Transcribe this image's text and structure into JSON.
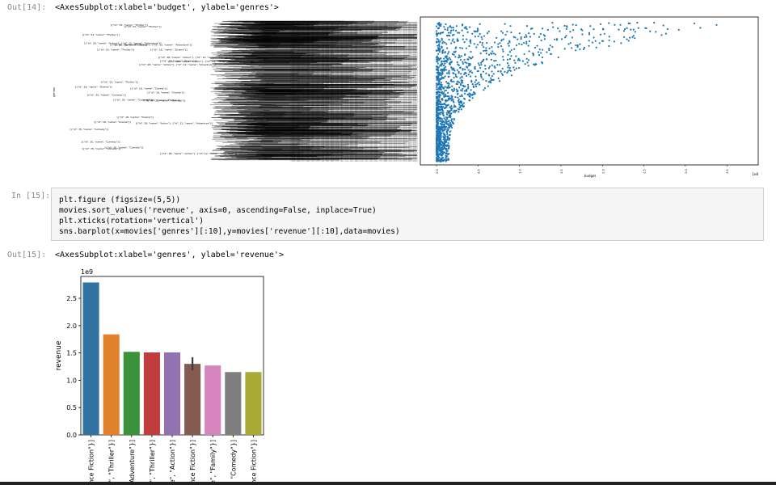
{
  "cells": {
    "out14": {
      "prompt": "Out[14]:",
      "text": "<AxesSubplot:xlabel='budget', ylabel='genres'>"
    },
    "in15": {
      "prompt": "In [15]:",
      "lines": [
        "plt.figure (figsize=(5,5))",
        "movies.sort_values('revenue', axis=0, ascending=False, inplace=True)",
        "plt.xticks(rotation='vertical')",
        "sns.barplot(x=movies['genres'][:10],y=movies['revenue'][:10],data=movies)"
      ]
    },
    "out15": {
      "prompt": "Out[15]:",
      "text": "<AxesSubplot:xlabel='genres', ylabel='revenue'>"
    }
  },
  "chart_data": [
    {
      "type": "scatter",
      "xlabel": "budget",
      "ylabel": "genres",
      "x_exponent": "1e8",
      "xlim": [
        0,
        3.8
      ],
      "xticks": [
        "0.0",
        "0.5",
        "1.0",
        "1.5",
        "2.0",
        "2.5",
        "3.0",
        "3.5"
      ],
      "tick_labels_dense": [
        "[{\"id\": 18, \"name\": \"Drama\"}]",
        "[{\"id\": 28, \"name\": \"Action\"}, {\"id\": 12, \"name\": \"Adventure\"}]",
        "[{\"id\": 35, \"name\": \"Comedy\"}]",
        "[{\"id\": 53, \"name\": \"Thriller\"}]"
      ],
      "point_color": "#1f77b4"
    },
    {
      "type": "bar",
      "title": "",
      "xlabel": "",
      "ylabel": "revenue",
      "y_exponent": "1e9",
      "ylim": [
        0,
        2.9
      ],
      "yticks": [
        "0.0",
        "0.5",
        "1.0",
        "1.5",
        "2.0",
        "2.5"
      ],
      "categories": [
        "ence Fiction\"}]",
        "e\", \"Thriller\"}]",
        "\"Adventure\"}]",
        "e\", \"Thriller\"}]",
        "ne\", \"Action\"}]",
        "ence Fiction\"}]",
        "ne\", \"Family\"}]",
        "\": \"Comedy\"}]",
        "ence Fiction\"}]"
      ],
      "values": [
        2.79,
        1.84,
        1.52,
        1.51,
        1.51,
        1.3,
        1.27,
        1.15,
        1.15
      ],
      "error_bars": [
        null,
        null,
        null,
        null,
        null,
        [
          1.18,
          1.42
        ],
        null,
        null,
        null
      ],
      "colors": [
        "#3274a1",
        "#e1812c",
        "#3a923a",
        "#c03d3e",
        "#9372b2",
        "#845b53",
        "#d684bd",
        "#7f7f7f",
        "#a9aa35"
      ]
    }
  ]
}
